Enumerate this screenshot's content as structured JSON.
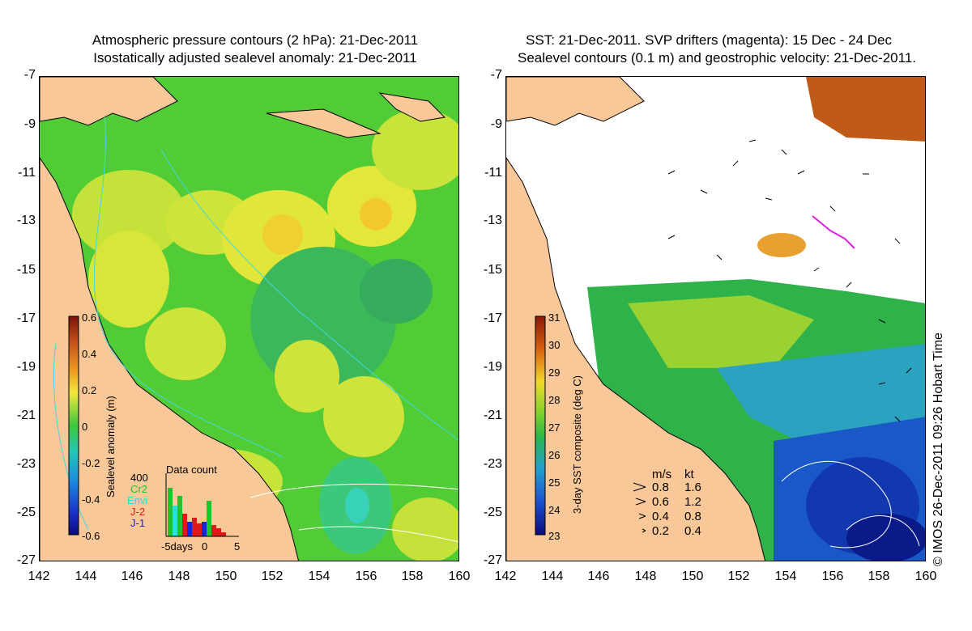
{
  "left_panel": {
    "title_line1": "Atmospheric pressure contours (2 hPa): 21-Dec-2011",
    "title_line2": "Isostatically adjusted sealevel anomaly: 21-Dec-2011",
    "colorbar": {
      "label": "Sealevel anomaly (m)",
      "ticks": [
        "0.6",
        "0.4",
        "0.2",
        "0",
        "-0.2",
        "-0.4",
        "-0.6"
      ]
    },
    "data_count": {
      "title": "Data count",
      "max_label": "400",
      "legend": [
        {
          "name": "Cr2",
          "color": "#22c22c"
        },
        {
          "name": "Envi",
          "color": "#25e0e0"
        },
        {
          "name": "J-2",
          "color": "#e01818"
        },
        {
          "name": "J-1",
          "color": "#1a24d8"
        }
      ],
      "x_labels": [
        "-5days",
        "0",
        "5"
      ]
    }
  },
  "right_panel": {
    "title_line1": "SST: 21-Dec-2011. SVP drifters (magenta): 15 Dec - 24 Dec",
    "title_line2": "Sealevel contours (0.1 m) and geostrophic velocity: 21-Dec-2011.",
    "colorbar": {
      "label": "3-day SST composite (deg C)",
      "ticks": [
        "31",
        "30",
        "29",
        "28",
        "27",
        "26",
        "25",
        "24",
        "23"
      ]
    },
    "velocity_legend": {
      "header_ms": "m/s",
      "header_kt": "kt",
      "rows": [
        {
          "ms": "0.8",
          "kt": "1.6"
        },
        {
          "ms": "0.6",
          "kt": "1.2"
        },
        {
          "ms": "0.4",
          "kt": "0.8"
        },
        {
          "ms": "0.2",
          "kt": "0.4"
        }
      ]
    },
    "credit": "© IMOS 26-Dec-2011 09:26 Hobart Time"
  },
  "axes": {
    "lat_ticks": [
      "-7",
      "-9",
      "-11",
      "-13",
      "-15",
      "-17",
      "-19",
      "-21",
      "-23",
      "-25",
      "-27"
    ],
    "lon_ticks": [
      "142",
      "144",
      "146",
      "148",
      "150",
      "152",
      "154",
      "156",
      "158",
      "160"
    ]
  },
  "colors": {
    "land": "#f9c898",
    "sla_green": "#5ed838",
    "sla_yellow": "#f2e83a",
    "contour_cyan": "#3fd8e0"
  }
}
